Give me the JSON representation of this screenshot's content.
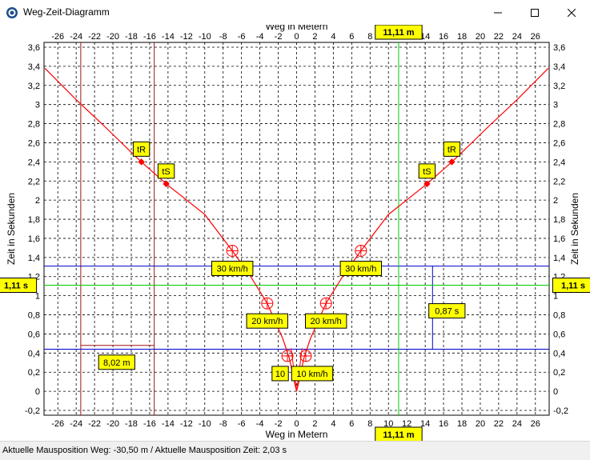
{
  "window": {
    "title": "Weg-Zeit-Diagramm"
  },
  "chart_data": {
    "type": "line",
    "xlabel": "Weg in Metern",
    "ylabel": "Zeit in Sekunden",
    "xlim": [
      -27.5,
      27.5
    ],
    "ylim": [
      -0.25,
      3.65
    ],
    "x_ticks": [
      -26,
      -24,
      -22,
      -20,
      -18,
      -16,
      -14,
      -12,
      -10,
      -8,
      -6,
      -4,
      -2,
      0,
      2,
      4,
      6,
      8,
      10,
      12,
      14,
      16,
      18,
      20,
      22,
      24,
      26
    ],
    "y_ticks": [
      -0.2,
      0,
      0.2,
      0.4,
      0.6,
      0.8,
      1,
      1.2,
      1.4,
      1.6,
      1.8,
      2,
      2.2,
      2.4,
      2.6,
      2.8,
      3,
      3.2,
      3.4,
      3.6
    ],
    "y_tick_labels": [
      "-0,2",
      "0",
      "0,2",
      "0,4",
      "0,6",
      "0,8",
      "1",
      "1,2",
      "1,4",
      "1,6",
      "1,8",
      "2",
      "2,2",
      "2,4",
      "2,6",
      "2,8",
      "3",
      "3,2",
      "3,4",
      "3,6"
    ],
    "grid": true,
    "curve": {
      "color": "#ff0000",
      "left_x": [
        -27.4,
        -24,
        -21,
        -18,
        -16.9,
        -14.2,
        -10,
        -7,
        -5,
        -3.2,
        -1.5,
        -0.8,
        -0.3,
        0
      ],
      "left_y": [
        3.38,
        3.05,
        2.78,
        2.5,
        2.4,
        2.17,
        1.85,
        1.47,
        1.2,
        0.92,
        0.55,
        0.35,
        0.12,
        0
      ],
      "right_x": [
        0,
        0.3,
        0.8,
        1.5,
        3.2,
        5,
        7,
        10,
        14.2,
        16.9,
        18,
        21,
        24,
        27.4
      ],
      "right_y": [
        0,
        0.12,
        0.35,
        0.55,
        0.92,
        1.2,
        1.47,
        1.85,
        2.17,
        2.4,
        2.5,
        2.78,
        3.05,
        3.38
      ]
    },
    "markers": [
      {
        "label": "tR",
        "x": -16.9,
        "y": 2.4
      },
      {
        "label": "tS",
        "x": -14.2,
        "y": 2.17
      },
      {
        "label": "tS",
        "x": 14.2,
        "y": 2.17
      },
      {
        "label": "tR",
        "x": 16.9,
        "y": 2.4
      }
    ],
    "circles": [
      {
        "x": -7,
        "y": 1.47,
        "label": "30 km/h"
      },
      {
        "x": -3.2,
        "y": 0.92,
        "label": "20 km/h"
      },
      {
        "x": -1,
        "y": 0.37,
        "label": "10"
      },
      {
        "x": 1,
        "y": 0.37,
        "label": "10 km/h"
      },
      {
        "x": 3.2,
        "y": 0.92,
        "label": "20 km/h"
      },
      {
        "x": 7,
        "y": 1.47,
        "label": "30 km/h"
      }
    ],
    "cursor": {
      "x": 11.11,
      "y": 1.11,
      "x_label": "11,11 m",
      "y_label": "1,11 s",
      "color": "#00cc00"
    },
    "dark_red_lines_x": [
      -23.5,
      -15.5
    ],
    "distance_annotation": {
      "x_from": -23.5,
      "x_to": -15.5,
      "y": 0.48,
      "label": "8,02 m"
    },
    "blue_lines_y": [
      1.31,
      0.44
    ],
    "blue_vertical": {
      "x": 14.8,
      "y_from": 0.44,
      "y_to": 1.31
    },
    "time_annotation": {
      "label": "0,87 s"
    }
  },
  "status": {
    "text": "Aktuelle Mausposition Weg: -30,50 m / Aktuelle Mausposition Zeit: 2,03 s"
  },
  "colors": {
    "grid": "#000000",
    "curve": "#ff0000",
    "dark_red": "#a01010",
    "cursor": "#00cc00",
    "blue": "#0000cc",
    "label_bg": "#ffff00"
  }
}
